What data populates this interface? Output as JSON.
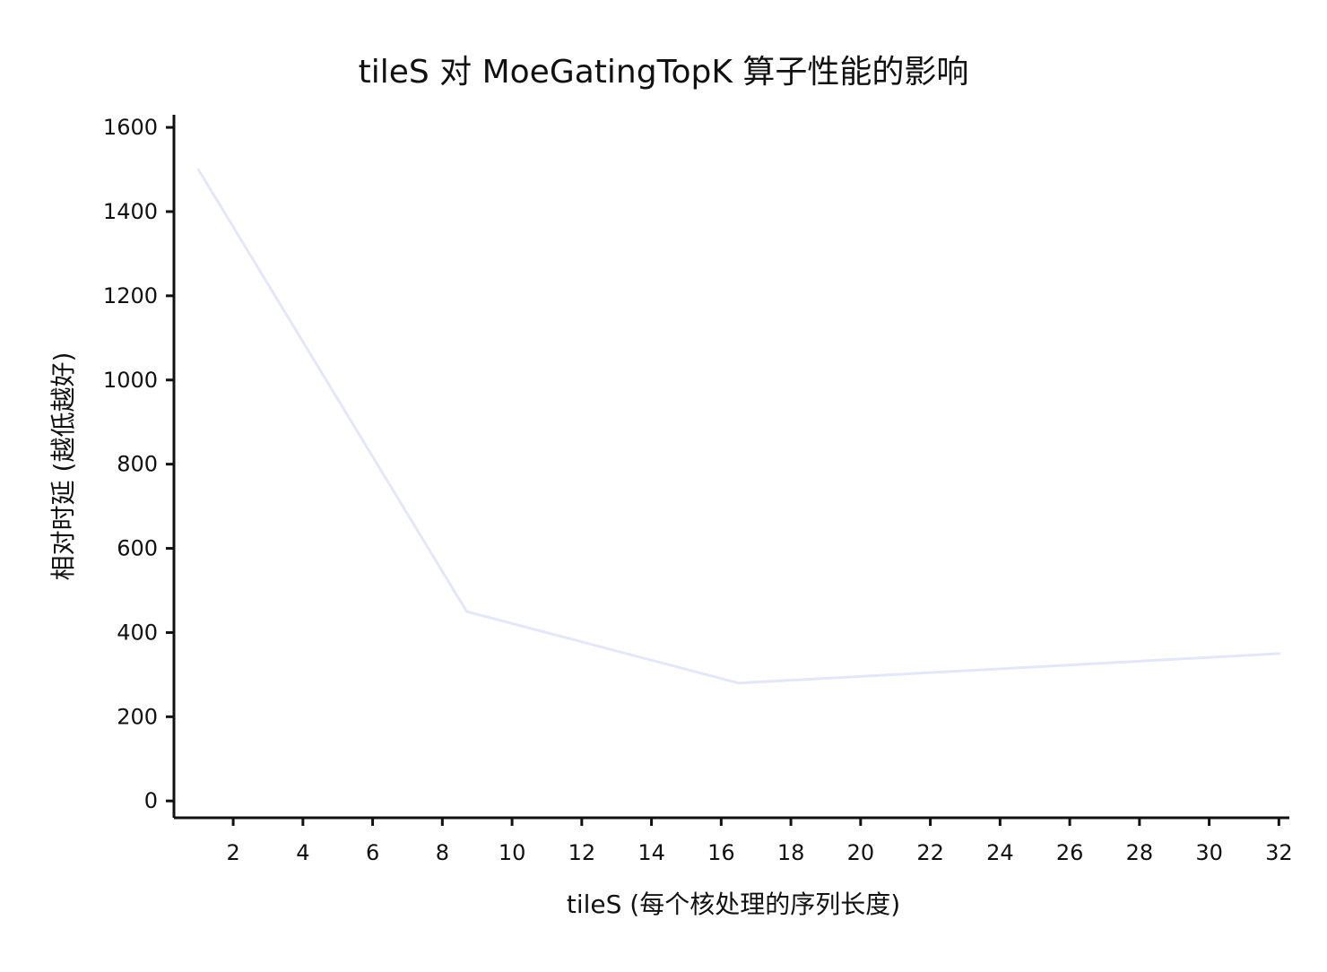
{
  "chart_data": {
    "type": "line",
    "title": "tileS 对 MoeGatingTopK 算子性能的影响",
    "xlabel": "tileS (每个核处理的序列长度)",
    "ylabel": "相对时延 (越低越好)",
    "xlim": [
      0.3,
      32.3
    ],
    "ylim": [
      -40,
      1630
    ],
    "x_ticks": [
      2,
      4,
      6,
      8,
      10,
      12,
      14,
      16,
      18,
      20,
      22,
      24,
      26,
      28,
      30,
      32
    ],
    "y_ticks": [
      0,
      200,
      400,
      600,
      800,
      1000,
      1200,
      1400,
      1600
    ],
    "grid": false,
    "series": [
      {
        "color": "#e6e6fa",
        "x": [
          1,
          8.7,
          16.5,
          32
        ],
        "y": [
          1500,
          450,
          280,
          350
        ]
      }
    ]
  }
}
